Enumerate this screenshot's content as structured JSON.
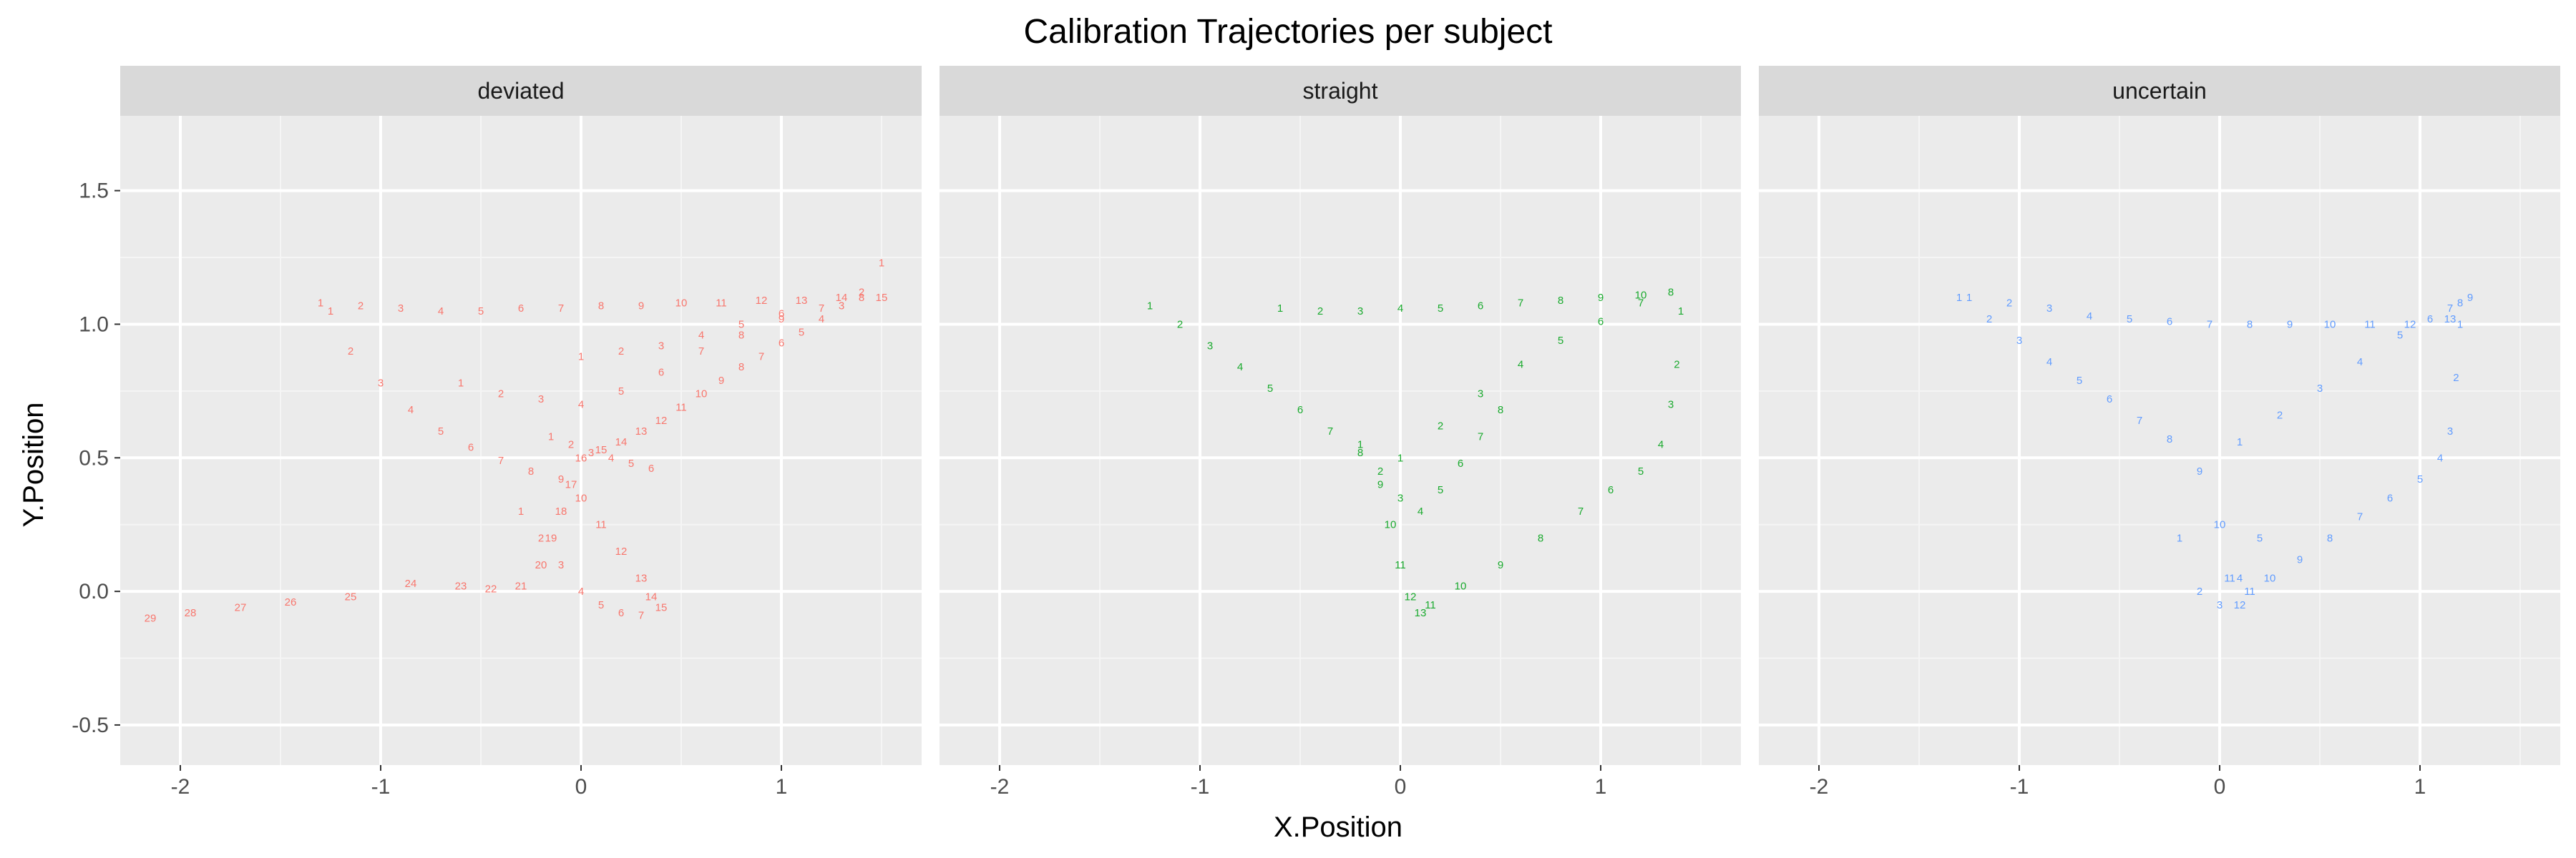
{
  "chart_data": {
    "type": "scatter",
    "title": "Calibration Trajectories per subject",
    "xlabel": "X.Position",
    "ylabel": "Y.Position",
    "xlim": [
      -2.3,
      1.7
    ],
    "ylim": [
      -0.65,
      1.78
    ],
    "x_ticks": [
      "-2",
      "-1",
      "0",
      "1"
    ],
    "y_ticks": [
      "-0.5",
      "0.0",
      "0.5",
      "1.0",
      "1.5"
    ],
    "grid": true,
    "legend": "none",
    "point_style": "text labels (frame numbers)",
    "panels": [
      {
        "name": "deviated",
        "color": "#F8766D",
        "series": [
          {
            "x": [
              1.5,
              1.4,
              1.3,
              1.2,
              1.1,
              1.0,
              0.9,
              0.8,
              0.7,
              0.6,
              0.5,
              0.4,
              0.3,
              0.2,
              0.1,
              0.0,
              -0.05,
              -0.1,
              -0.15,
              -0.2,
              -0.3,
              -0.45,
              -0.6,
              -0.85,
              -1.15,
              -1.45,
              -1.7,
              -1.95,
              -2.15
            ],
            "y": [
              1.23,
              1.12,
              1.07,
              1.02,
              0.97,
              0.93,
              0.88,
              0.84,
              0.79,
              0.74,
              0.69,
              0.64,
              0.6,
              0.56,
              0.53,
              0.5,
              0.4,
              0.3,
              0.2,
              0.1,
              0.02,
              0.01,
              0.02,
              0.03,
              -0.02,
              -0.04,
              -0.06,
              -0.08,
              -0.1
            ]
          },
          {
            "x": [
              -1.3,
              -1.1,
              -0.9,
              -0.7,
              -0.5,
              -0.3,
              -0.1,
              0.1,
              0.3,
              0.5,
              0.7,
              0.9,
              1.1,
              1.3,
              1.5
            ],
            "y": [
              1.08,
              1.07,
              1.06,
              1.05,
              1.05,
              1.06,
              1.06,
              1.07,
              1.07,
              1.08,
              1.08,
              1.09,
              1.09,
              1.1,
              1.1
            ]
          },
          {
            "x": [
              -1.25,
              -1.15,
              -1.0,
              -0.85,
              -0.7,
              -0.55,
              -0.4,
              -0.25,
              -0.1,
              0.0,
              0.1,
              0.2,
              0.3,
              0.35,
              0.4
            ],
            "y": [
              1.05,
              0.9,
              0.78,
              0.68,
              0.6,
              0.54,
              0.49,
              0.45,
              0.42,
              0.35,
              0.25,
              0.15,
              0.05,
              -0.02,
              -0.06
            ]
          },
          {
            "x": [
              -0.6,
              -0.4,
              -0.2,
              0.0,
              0.2,
              0.4,
              0.6,
              0.8,
              1.0
            ],
            "y": [
              0.78,
              0.74,
              0.72,
              0.7,
              0.75,
              0.82,
              0.9,
              0.96,
              1.02
            ]
          },
          {
            "x": [
              -0.15,
              -0.05,
              0.05,
              0.15,
              0.25,
              0.35
            ],
            "y": [
              0.58,
              0.55,
              0.52,
              0.5,
              0.48,
              0.46
            ]
          },
          {
            "x": [
              -0.3,
              -0.2,
              -0.1,
              0.0,
              0.1,
              0.2,
              0.3
            ],
            "y": [
              0.3,
              0.2,
              0.1,
              0.0,
              -0.05,
              -0.08,
              -0.09
            ]
          },
          {
            "x": [
              0.0,
              0.2,
              0.4,
              0.6,
              0.8,
              1.0,
              1.2,
              1.4
            ],
            "y": [
              0.88,
              0.9,
              0.92,
              0.96,
              1.0,
              1.04,
              1.06,
              1.1
            ]
          }
        ]
      },
      {
        "name": "straight",
        "color": "#1AAA2E",
        "series": [
          {
            "x": [
              -1.25,
              -1.1,
              -0.95,
              -0.8,
              -0.65,
              -0.5,
              -0.35,
              -0.2,
              -0.1,
              -0.05,
              0.0,
              0.05,
              0.1
            ],
            "y": [
              1.07,
              1.0,
              0.92,
              0.84,
              0.76,
              0.68,
              0.6,
              0.52,
              0.4,
              0.25,
              0.1,
              -0.02,
              -0.08
            ]
          },
          {
            "x": [
              0.0,
              0.2,
              0.4,
              0.6,
              0.8,
              1.0,
              1.2,
              1.35
            ],
            "y": [
              0.5,
              0.62,
              0.74,
              0.85,
              0.94,
              1.01,
              1.08,
              1.12
            ]
          },
          {
            "x": [
              1.4,
              1.38,
              1.35,
              1.3,
              1.2,
              1.05,
              0.9,
              0.7,
              0.5,
              0.3,
              0.15
            ],
            "y": [
              1.05,
              0.85,
              0.7,
              0.55,
              0.45,
              0.38,
              0.3,
              0.2,
              0.1,
              0.02,
              -0.05
            ]
          },
          {
            "x": [
              -0.6,
              -0.4,
              -0.2,
              0.0,
              0.2,
              0.4,
              0.6,
              0.8,
              1.0,
              1.2
            ],
            "y": [
              1.06,
              1.05,
              1.05,
              1.06,
              1.06,
              1.07,
              1.08,
              1.09,
              1.1,
              1.11
            ]
          },
          {
            "x": [
              -0.2,
              -0.1,
              0.0,
              0.1,
              0.2,
              0.3,
              0.4,
              0.5
            ],
            "y": [
              0.55,
              0.45,
              0.35,
              0.3,
              0.38,
              0.48,
              0.58,
              0.68
            ]
          }
        ]
      },
      {
        "name": "uncertain",
        "color": "#619CFF",
        "series": [
          {
            "x": [
              -1.3,
              -1.15,
              -1.0,
              -0.85,
              -0.7,
              -0.55,
              -0.4,
              -0.25,
              -0.1,
              0.0,
              0.05,
              0.1
            ],
            "y": [
              1.1,
              1.02,
              0.94,
              0.86,
              0.79,
              0.72,
              0.64,
              0.57,
              0.45,
              0.25,
              0.05,
              -0.05
            ]
          },
          {
            "x": [
              0.1,
              0.3,
              0.5,
              0.7,
              0.9,
              1.05,
              1.15,
              1.2,
              1.25
            ],
            "y": [
              0.56,
              0.66,
              0.76,
              0.86,
              0.96,
              1.02,
              1.06,
              1.08,
              1.1
            ]
          },
          {
            "x": [
              1.2,
              1.18,
              1.15,
              1.1,
              1.0,
              0.85,
              0.7,
              0.55,
              0.4,
              0.25,
              0.15
            ],
            "y": [
              1.0,
              0.8,
              0.6,
              0.5,
              0.42,
              0.35,
              0.28,
              0.2,
              0.12,
              0.05,
              0.0
            ]
          },
          {
            "x": [
              -1.25,
              -1.05,
              -0.85,
              -0.65,
              -0.45,
              -0.25,
              -0.05,
              0.15,
              0.35,
              0.55,
              0.75,
              0.95,
              1.15
            ],
            "y": [
              1.1,
              1.08,
              1.06,
              1.03,
              1.02,
              1.01,
              1.0,
              1.0,
              1.0,
              1.0,
              1.0,
              1.0,
              1.02
            ]
          },
          {
            "x": [
              -0.2,
              -0.1,
              0.0,
              0.1,
              0.2
            ],
            "y": [
              0.2,
              0.0,
              -0.05,
              0.05,
              0.2
            ]
          }
        ]
      }
    ]
  }
}
